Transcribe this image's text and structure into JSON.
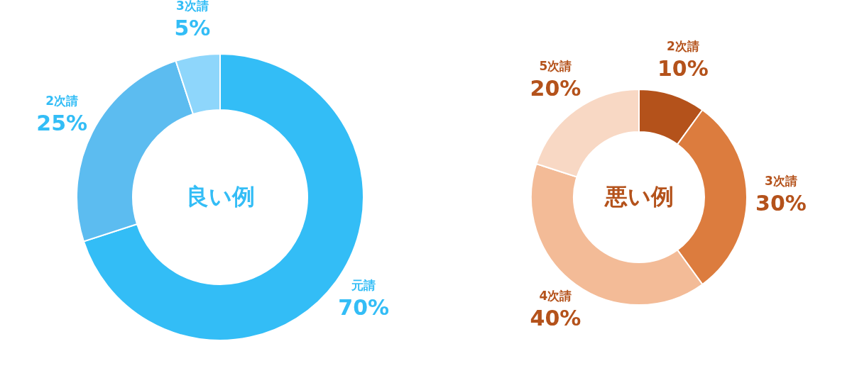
{
  "chart_data": [
    {
      "type": "donut",
      "title": "良い例",
      "categories": [
        "元請",
        "2次請",
        "3次請"
      ],
      "values": [
        70,
        25,
        5
      ],
      "colors": [
        "#33bdf6",
        "#5cbcf0",
        "#8ed6fb"
      ],
      "value_labels": [
        "70%",
        "25%",
        "5%"
      ],
      "legend": false
    },
    {
      "type": "donut",
      "title": "悪い例",
      "categories": [
        "2次請",
        "3次請",
        "4次請",
        "5次請"
      ],
      "values": [
        10,
        30,
        40,
        20
      ],
      "colors": [
        "#b4521b",
        "#dc7c3e",
        "#f3bb97",
        "#f8d8c4"
      ],
      "value_labels": [
        "10%",
        "30%",
        "40%",
        "20%"
      ],
      "legend": false
    }
  ]
}
